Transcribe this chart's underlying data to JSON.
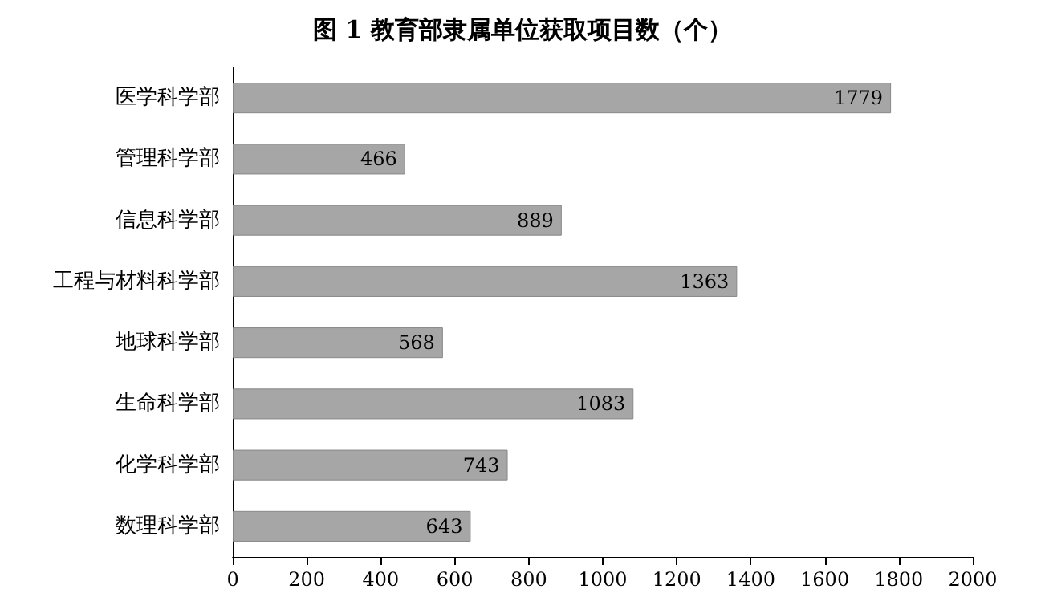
{
  "chart_data": {
    "type": "bar",
    "orientation": "horizontal",
    "title": "图 1 教育部隶属单位获取项目数（个）",
    "categories": [
      "医学科学部",
      "管理科学部",
      "信息科学部",
      "工程与材料科学部",
      "地球科学部",
      "生命科学部",
      "化学科学部",
      "数理科学部"
    ],
    "values": [
      1779,
      466,
      889,
      1363,
      568,
      1083,
      743,
      643
    ],
    "color": "#a6a6a6",
    "xlim": [
      0,
      2000
    ],
    "xticks": [
      0,
      200,
      400,
      600,
      800,
      1000,
      1200,
      1400,
      1600,
      1800,
      2000
    ],
    "data_labels": true
  }
}
